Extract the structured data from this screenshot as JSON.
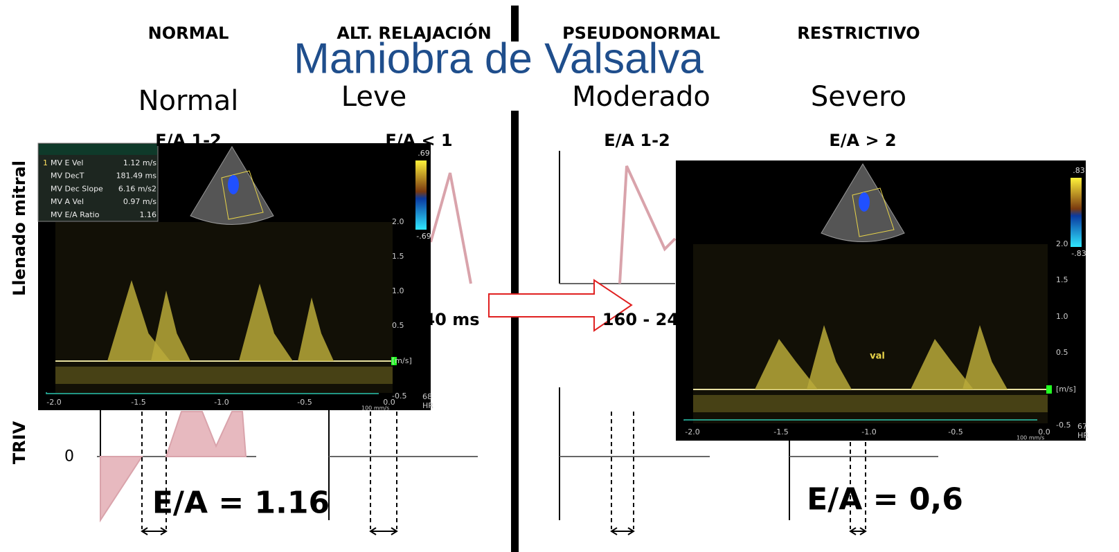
{
  "title": "Maniobra de Valsalva",
  "columns": [
    {
      "header": "NORMAL",
      "grade": "Normal",
      "ratio": "E/A 1-2"
    },
    {
      "header": "ALT. RELAJACIÓN",
      "grade": "Leve",
      "ratio": "E/A < 1"
    },
    {
      "header": "PSEUDONORMAL",
      "grade": "Moderado",
      "ratio": "E/A 1-2"
    },
    {
      "header": "RESTRICTIVO",
      "grade": "Severo",
      "ratio": "E/A > 2"
    }
  ],
  "row_labels": [
    "Llenado mitral",
    "TRIV"
  ],
  "zero_label": "0",
  "timing_labels": [
    "40 ms",
    "160 - 24"
  ],
  "echo_left": {
    "index": "1",
    "measurements": [
      {
        "label": "MV E Vel",
        "value": "1.12 m/s"
      },
      {
        "label": "MV DecT",
        "value": "181.49 ms"
      },
      {
        "label": "MV Dec Slope",
        "value": "6.16 m/s2"
      },
      {
        "label": "MV A Vel",
        "value": "0.97 m/s"
      },
      {
        "label": "MV E/A Ratio",
        "value": "1.16"
      }
    ],
    "color_scale": [
      ".69",
      "-.69"
    ],
    "velocity_ticks": [
      "2.0",
      "1.5",
      "1.0",
      "0.5",
      "[m/s]",
      "-0.5"
    ],
    "time_ticks": [
      "-2.0",
      "-1.5",
      "-1.0",
      "-0.5",
      "0.0"
    ],
    "hr": "68",
    "hr_label": "HR",
    "sweep": "100 mm/s"
  },
  "echo_right": {
    "color_scale": [
      ".83",
      "-.83"
    ],
    "velocity_ticks": [
      "2.0",
      "1.5",
      "1.0",
      "0.5",
      "[m/s]",
      "-0.5"
    ],
    "time_ticks": [
      "-2.0",
      "-1.5",
      "-1.0",
      "-0.5",
      "0.0"
    ],
    "hr": "67",
    "hr_label": "HR",
    "sweep": "100 mm/s",
    "annotation": "val"
  },
  "results": [
    "E/A = 1.16",
    "E/A = 0,6"
  ]
}
